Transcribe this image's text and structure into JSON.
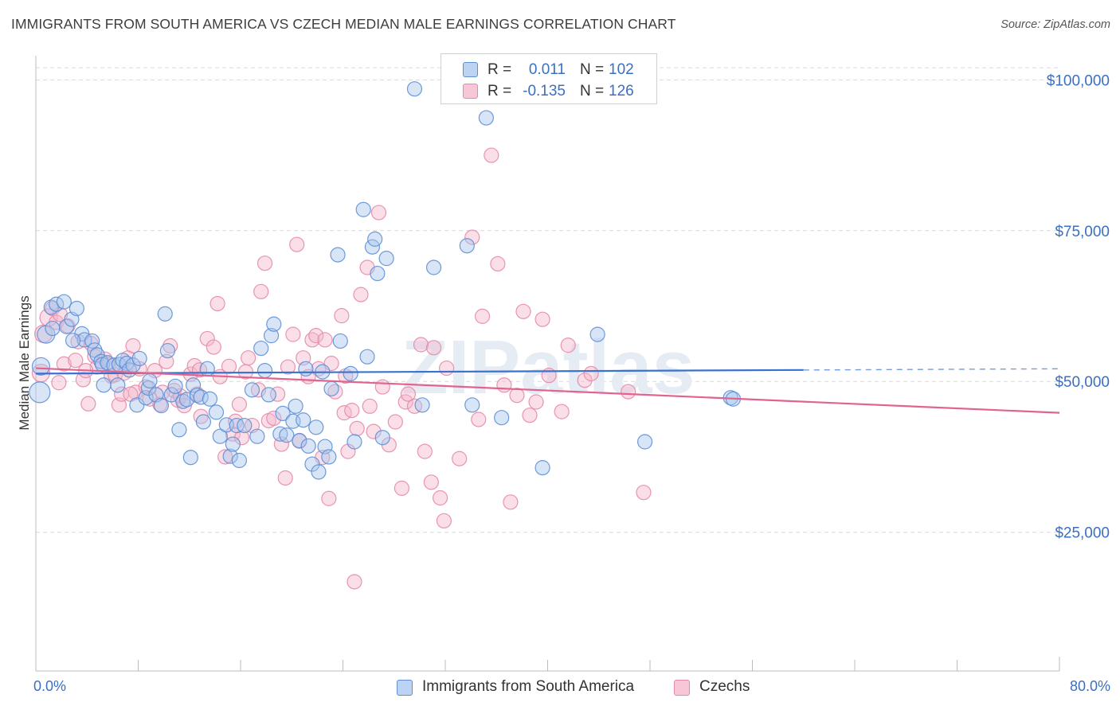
{
  "title": "IMMIGRANTS FROM SOUTH AMERICA VS CZECH MEDIAN MALE EARNINGS CORRELATION CHART",
  "source": "Source: ZipAtlas.com",
  "watermark": "ZIPatlas",
  "legend": {
    "rows": [
      {
        "r_label": "R =",
        "r_value": "0.011",
        "n_label": "N =",
        "n_value": "102"
      },
      {
        "r_label": "R =",
        "r_value": "-0.135",
        "n_label": "N =",
        "n_value": "126"
      }
    ]
  },
  "colors": {
    "blue_fill": "#a9c6ee",
    "blue_stroke": "#5d8fd6",
    "blue_line": "#3a72cf",
    "pink_fill": "#f5b8cc",
    "pink_stroke": "#e58aa9",
    "pink_line": "#e0648f",
    "axis_text": "#3a6fc4",
    "grid": "#d9d9d9"
  },
  "chart_data": {
    "type": "scatter",
    "title": "IMMIGRANTS FROM SOUTH AMERICA VS CZECH MEDIAN MALE EARNINGS CORRELATION CHART",
    "xlabel": "",
    "ylabel": "Median Male Earnings",
    "xlim": [
      0,
      80
    ],
    "ylim": [
      2000,
      104000
    ],
    "x_tick_labels": [
      "0.0%",
      "80.0%"
    ],
    "y_ticks": [
      25000,
      50000,
      75000,
      100000
    ],
    "y_tick_labels": [
      "$25,000",
      "$50,000",
      "$75,000",
      "$100,000"
    ],
    "grid": true,
    "legend_position": "bottom",
    "series": [
      {
        "name": "Immigrants from South America",
        "r": 0.011,
        "n": 102,
        "trend": {
          "x_start": 0,
          "x_end": 60,
          "y_start": 51300,
          "y_end": 51900,
          "dashed_to_x": 80,
          "dashed_end_y": 52100
        },
        "points": [
          [
            0.3,
            48200
          ],
          [
            0.4,
            52500
          ],
          [
            0.8,
            57800
          ],
          [
            1.2,
            62300
          ],
          [
            1.3,
            58800
          ],
          [
            1.6,
            62800
          ],
          [
            2.2,
            63200
          ],
          [
            2.4,
            59100
          ],
          [
            2.8,
            60300
          ],
          [
            3.2,
            62100
          ],
          [
            3.6,
            57900
          ],
          [
            3.8,
            56900
          ],
          [
            4.4,
            56700
          ],
          [
            4.6,
            55200
          ],
          [
            4.8,
            54400
          ],
          [
            5.1,
            53300
          ],
          [
            5.2,
            52800
          ],
          [
            5.6,
            53100
          ],
          [
            6.1,
            52700
          ],
          [
            6.4,
            49400
          ],
          [
            6.5,
            52800
          ],
          [
            6.8,
            53500
          ],
          [
            7.1,
            53000
          ],
          [
            7.3,
            51900
          ],
          [
            7.6,
            52700
          ],
          [
            7.9,
            46100
          ],
          [
            8.1,
            53800
          ],
          [
            8.6,
            47300
          ],
          [
            8.8,
            48900
          ],
          [
            8.9,
            50100
          ],
          [
            9.4,
            47800
          ],
          [
            9.8,
            46000
          ],
          [
            10.1,
            61200
          ],
          [
            10.3,
            55100
          ],
          [
            10.6,
            47800
          ],
          [
            10.9,
            49200
          ],
          [
            11.2,
            42000
          ],
          [
            11.5,
            46700
          ],
          [
            11.8,
            47000
          ],
          [
            12.1,
            37400
          ],
          [
            12.3,
            49400
          ],
          [
            12.6,
            47700
          ],
          [
            12.9,
            47400
          ],
          [
            13.1,
            43300
          ],
          [
            13.4,
            52100
          ],
          [
            13.6,
            47100
          ],
          [
            14.1,
            44900
          ],
          [
            14.4,
            40900
          ],
          [
            14.9,
            42800
          ],
          [
            15.2,
            37600
          ],
          [
            15.4,
            39600
          ],
          [
            15.7,
            42700
          ],
          [
            15.9,
            36900
          ],
          [
            16.3,
            42700
          ],
          [
            16.9,
            48600
          ],
          [
            17.3,
            40900
          ],
          [
            17.6,
            55500
          ],
          [
            17.9,
            51800
          ],
          [
            18.2,
            47800
          ],
          [
            18.4,
            57600
          ],
          [
            18.6,
            59500
          ],
          [
            19.1,
            41300
          ],
          [
            19.3,
            44700
          ],
          [
            19.6,
            41100
          ],
          [
            20.1,
            43400
          ],
          [
            20.3,
            45900
          ],
          [
            20.6,
            40200
          ],
          [
            20.9,
            43600
          ],
          [
            21.1,
            52100
          ],
          [
            21.3,
            39300
          ],
          [
            21.6,
            36300
          ],
          [
            21.9,
            42400
          ],
          [
            22.1,
            35000
          ],
          [
            22.4,
            51600
          ],
          [
            22.6,
            39200
          ],
          [
            22.9,
            37500
          ],
          [
            23.1,
            48800
          ],
          [
            23.6,
            71000
          ],
          [
            23.8,
            56700
          ],
          [
            24.6,
            51300
          ],
          [
            24.9,
            40000
          ],
          [
            25.6,
            78500
          ],
          [
            25.9,
            54100
          ],
          [
            26.3,
            72300
          ],
          [
            26.5,
            73600
          ],
          [
            26.7,
            67900
          ],
          [
            27.1,
            40700
          ],
          [
            27.4,
            70400
          ],
          [
            29.6,
            98500
          ],
          [
            30.2,
            46100
          ],
          [
            31.1,
            68900
          ],
          [
            33.7,
            72500
          ],
          [
            34.1,
            46100
          ],
          [
            35.2,
            93700
          ],
          [
            36.4,
            44000
          ],
          [
            39.6,
            35700
          ],
          [
            43.9,
            57800
          ],
          [
            47.6,
            40000
          ],
          [
            54.3,
            47300
          ],
          [
            54.5,
            47100
          ],
          [
            2.9,
            56800
          ],
          [
            5.3,
            49400
          ]
        ]
      },
      {
        "name": "Czechs",
        "r": -0.135,
        "n": 126,
        "trend": {
          "x_start": 0,
          "x_end": 80,
          "y_start": 52200,
          "y_end": 44800
        },
        "points": [
          [
            0.4,
            51400
          ],
          [
            0.6,
            57900
          ],
          [
            1.0,
            60600
          ],
          [
            1.3,
            62100
          ],
          [
            1.6,
            59800
          ],
          [
            1.9,
            61100
          ],
          [
            2.2,
            52900
          ],
          [
            2.5,
            59200
          ],
          [
            3.1,
            53500
          ],
          [
            3.3,
            56600
          ],
          [
            3.7,
            50300
          ],
          [
            4.1,
            46300
          ],
          [
            4.3,
            56300
          ],
          [
            4.6,
            54200
          ],
          [
            4.8,
            52400
          ],
          [
            5.4,
            53700
          ],
          [
            5.7,
            52800
          ],
          [
            5.9,
            50900
          ],
          [
            6.2,
            51100
          ],
          [
            6.5,
            46100
          ],
          [
            6.7,
            47900
          ],
          [
            6.9,
            51400
          ],
          [
            7.2,
            53900
          ],
          [
            7.6,
            55900
          ],
          [
            7.8,
            48200
          ],
          [
            8.1,
            52100
          ],
          [
            8.6,
            49100
          ],
          [
            8.9,
            47100
          ],
          [
            9.3,
            51800
          ],
          [
            9.7,
            46200
          ],
          [
            10.2,
            53300
          ],
          [
            10.5,
            55900
          ],
          [
            10.8,
            48500
          ],
          [
            11.1,
            46900
          ],
          [
            11.3,
            47600
          ],
          [
            11.6,
            46000
          ],
          [
            12.1,
            51200
          ],
          [
            12.4,
            52600
          ],
          [
            12.6,
            47900
          ],
          [
            12.9,
            44200
          ],
          [
            13.4,
            57100
          ],
          [
            13.9,
            55700
          ],
          [
            14.2,
            62900
          ],
          [
            14.4,
            50800
          ],
          [
            14.8,
            37500
          ],
          [
            15.1,
            52500
          ],
          [
            15.4,
            41300
          ],
          [
            15.6,
            43400
          ],
          [
            15.9,
            46200
          ],
          [
            16.1,
            40700
          ],
          [
            16.6,
            53900
          ],
          [
            16.9,
            42700
          ],
          [
            17.4,
            48600
          ],
          [
            17.6,
            64900
          ],
          [
            17.9,
            69600
          ],
          [
            18.2,
            43500
          ],
          [
            18.6,
            43900
          ],
          [
            18.9,
            47900
          ],
          [
            19.2,
            39600
          ],
          [
            19.5,
            34000
          ],
          [
            19.7,
            52400
          ],
          [
            20.1,
            57800
          ],
          [
            20.4,
            72700
          ],
          [
            20.6,
            40100
          ],
          [
            20.9,
            53900
          ],
          [
            21.3,
            50800
          ],
          [
            21.6,
            56900
          ],
          [
            21.9,
            57600
          ],
          [
            22.1,
            52100
          ],
          [
            22.4,
            37400
          ],
          [
            22.6,
            56900
          ],
          [
            22.9,
            30600
          ],
          [
            23.1,
            53000
          ],
          [
            23.4,
            48300
          ],
          [
            23.9,
            60900
          ],
          [
            24.1,
            44800
          ],
          [
            24.4,
            38400
          ],
          [
            24.7,
            45200
          ],
          [
            24.9,
            16800
          ],
          [
            25.1,
            42200
          ],
          [
            25.4,
            64400
          ],
          [
            25.9,
            68900
          ],
          [
            26.4,
            41700
          ],
          [
            26.8,
            78000
          ],
          [
            27.1,
            49100
          ],
          [
            27.6,
            39500
          ],
          [
            28.1,
            43300
          ],
          [
            28.6,
            32300
          ],
          [
            28.9,
            46600
          ],
          [
            29.1,
            47900
          ],
          [
            29.6,
            45900
          ],
          [
            30.1,
            56100
          ],
          [
            30.4,
            38400
          ],
          [
            30.9,
            33300
          ],
          [
            31.1,
            55600
          ],
          [
            31.6,
            30700
          ],
          [
            31.9,
            26900
          ],
          [
            32.1,
            52200
          ],
          [
            33.1,
            37200
          ],
          [
            34.1,
            73900
          ],
          [
            34.6,
            43700
          ],
          [
            34.9,
            60800
          ],
          [
            35.6,
            87500
          ],
          [
            36.1,
            69500
          ],
          [
            36.6,
            49400
          ],
          [
            37.1,
            30000
          ],
          [
            37.6,
            47700
          ],
          [
            38.1,
            61600
          ],
          [
            38.6,
            44400
          ],
          [
            39.1,
            46600
          ],
          [
            39.6,
            60300
          ],
          [
            40.1,
            51000
          ],
          [
            41.1,
            45000
          ],
          [
            41.6,
            56000
          ],
          [
            42.9,
            50200
          ],
          [
            43.4,
            51300
          ],
          [
            46.3,
            48300
          ],
          [
            47.5,
            31600
          ],
          [
            1.8,
            49800
          ],
          [
            3.9,
            51800
          ],
          [
            7.4,
            47900
          ],
          [
            9.9,
            48200
          ],
          [
            12.8,
            51900
          ],
          [
            16.4,
            51600
          ],
          [
            24.2,
            50900
          ],
          [
            26.1,
            45900
          ]
        ]
      }
    ]
  },
  "bottom_legend": [
    "Immigrants from South America",
    "Czechs"
  ]
}
